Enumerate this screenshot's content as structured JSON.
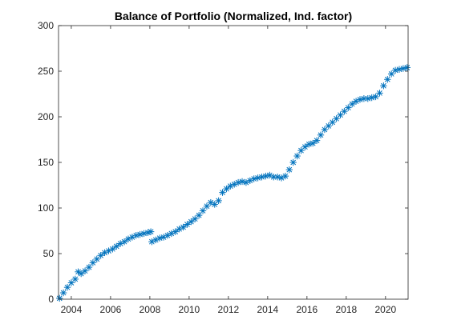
{
  "chart_data": {
    "type": "scatter",
    "title": "Balance of Portfolio (Normalized, Ind. factor)",
    "xlabel": "",
    "ylabel": "",
    "xlim": [
      2003.35,
      2021.15
    ],
    "ylim": [
      0,
      300
    ],
    "xticks": [
      2004,
      2006,
      2008,
      2010,
      2012,
      2014,
      2016,
      2018,
      2020
    ],
    "yticks": [
      0,
      50,
      100,
      150,
      200,
      250,
      300
    ],
    "grid": false,
    "marker": "asterisk",
    "color": "#0072BD",
    "series": [
      {
        "x": [
          2003.4,
          2003.6,
          2003.8,
          2004.0,
          2004.2,
          2004.35,
          2004.5,
          2004.7,
          2004.9,
          2005.1,
          2005.3,
          2005.5,
          2005.7,
          2005.9,
          2006.1,
          2006.3,
          2006.5,
          2006.7,
          2006.9,
          2007.1,
          2007.3,
          2007.5,
          2007.7,
          2007.9,
          2008.05,
          2008.1,
          2008.3,
          2008.5,
          2008.7,
          2008.9,
          2009.1,
          2009.3,
          2009.5,
          2009.7,
          2009.9,
          2010.1,
          2010.3,
          2010.5,
          2010.7,
          2010.9,
          2011.1,
          2011.3,
          2011.5,
          2011.7,
          2011.9,
          2012.1,
          2012.3,
          2012.5,
          2012.7,
          2012.9,
          2013.1,
          2013.3,
          2013.5,
          2013.7,
          2013.9,
          2014.1,
          2014.3,
          2014.5,
          2014.7,
          2014.9,
          2015.1,
          2015.3,
          2015.5,
          2015.7,
          2015.9,
          2016.1,
          2016.3,
          2016.5,
          2016.7,
          2016.9,
          2017.1,
          2017.3,
          2017.5,
          2017.7,
          2017.9,
          2018.1,
          2018.3,
          2018.5,
          2018.7,
          2018.9,
          2019.1,
          2019.3,
          2019.5,
          2019.7,
          2019.9,
          2020.1,
          2020.3,
          2020.5,
          2020.7,
          2020.9,
          2021.1
        ],
        "y": [
          1,
          7,
          13,
          18,
          22,
          30,
          28,
          31,
          35,
          40,
          44,
          48,
          51,
          53,
          55,
          58,
          61,
          63,
          66,
          68,
          70,
          71,
          72,
          73,
          74,
          63,
          65,
          67,
          68,
          70,
          72,
          74,
          77,
          79,
          82,
          85,
          88,
          92,
          97,
          102,
          106,
          104,
          108,
          117,
          121,
          124,
          126,
          128,
          129,
          128,
          130,
          132,
          133,
          134,
          135,
          136,
          134,
          134,
          133,
          135,
          142,
          150,
          157,
          163,
          167,
          170,
          171,
          174,
          180,
          186,
          190,
          194,
          198,
          202,
          206,
          210,
          214,
          217,
          219,
          220,
          220,
          221,
          222,
          226,
          234,
          241,
          247,
          251,
          252,
          253,
          254
        ]
      }
    ]
  }
}
